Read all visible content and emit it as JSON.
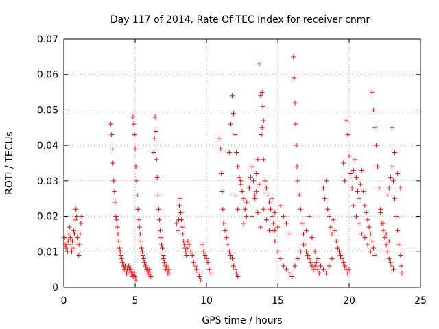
{
  "chart_data": {
    "type": "scatter",
    "title": "Day 117 of 2014, Rate Of TEC Index for receiver cnmr",
    "xlabel": "GPS time / hours",
    "ylabel": "ROTI / TECUs",
    "xlim": [
      0,
      25
    ],
    "ylim": [
      0,
      0.07
    ],
    "xticks": [
      0,
      5,
      10,
      15,
      20,
      25
    ],
    "xtick_labels": [
      "0",
      "5",
      "10",
      "15",
      "20",
      "25"
    ],
    "yticks": [
      0,
      0.01,
      0.02,
      0.03,
      0.04,
      0.05,
      0.06,
      0.07
    ],
    "ytick_labels": [
      "0",
      "0.01",
      "0.02",
      "0.03",
      "0.04",
      "0.05",
      "0.06",
      "0.07"
    ],
    "grid": true,
    "marker": "plus",
    "color": "#ff0000",
    "series": [
      {
        "x": [
          0.05,
          0.1,
          0.15,
          0.2,
          0.25,
          0.3,
          0.35,
          0.4,
          0.45,
          0.5,
          0.55,
          0.6,
          0.65,
          0.7,
          0.75,
          0.8,
          0.85,
          0.9,
          0.95,
          1.0,
          1.05,
          1.1,
          1.15,
          1.2,
          1.25,
          3.3,
          3.35,
          3.4,
          3.45,
          3.5,
          3.55,
          3.6,
          3.65,
          3.7,
          3.75,
          3.8,
          3.85,
          3.9,
          3.95,
          4.0,
          4.05,
          4.1,
          4.15,
          4.2,
          4.25,
          4.3,
          4.35,
          4.4,
          4.45,
          4.5,
          4.55,
          4.6,
          4.65,
          4.7,
          4.75,
          4.8,
          4.85,
          4.9,
          4.95,
          5.0,
          5.05,
          4.85,
          4.9,
          4.95,
          5.0,
          5.05,
          5.1,
          5.15,
          5.2,
          5.25,
          5.3,
          5.35,
          5.4,
          5.45,
          5.5,
          5.55,
          5.6,
          5.65,
          5.7,
          5.75,
          5.8,
          5.85,
          5.9,
          5.95,
          6.0,
          6.05,
          6.1,
          6.3,
          6.35,
          6.4,
          6.45,
          6.5,
          6.55,
          6.6,
          6.65,
          6.7,
          6.75,
          6.8,
          6.85,
          6.9,
          6.95,
          7.0,
          7.05,
          7.1,
          7.15,
          7.2,
          7.25,
          7.3,
          7.35,
          7.4,
          7.9,
          8.0,
          8.05,
          8.1,
          8.15,
          8.2,
          8.25,
          8.3,
          8.35,
          8.4,
          8.45,
          8.5,
          8.55,
          8.6,
          8.65,
          8.7,
          8.8,
          8.9,
          9.0,
          9.1,
          9.2,
          9.3,
          9.4,
          9.5,
          9.6,
          9.7,
          9.8,
          9.9,
          10.0,
          10.1,
          10.2,
          10.3,
          10.9,
          11.0,
          11.05,
          11.1,
          11.15,
          11.2,
          11.3,
          11.4,
          11.5,
          11.6,
          11.7,
          11.8,
          11.9,
          12.0,
          12.1,
          12.2,
          11.6,
          11.7,
          11.8,
          11.9,
          12.0,
          12.1,
          12.2,
          12.3,
          12.4,
          12.5,
          12.6,
          12.7,
          12.8,
          12.9,
          13.0,
          13.1,
          13.2,
          13.3,
          13.4,
          13.5,
          13.6,
          13.7,
          13.8,
          13.9,
          14.0,
          14.1,
          14.2,
          14.3,
          14.4,
          14.5,
          14.6,
          14.7,
          14.8,
          12.0,
          12.2,
          12.4,
          12.6,
          12.8,
          13.0,
          13.2,
          13.4,
          13.5,
          13.6,
          13.7,
          13.8,
          14.0,
          14.2,
          14.4,
          14.6,
          14.8,
          15.0,
          15.2,
          15.4,
          15.6,
          15.8,
          13.9,
          13.95,
          14.0,
          13.85,
          14.6,
          14.8,
          15.0,
          15.2,
          15.4,
          15.6,
          15.8,
          16.0,
          16.2,
          16.4,
          16.6,
          16.8,
          17.0,
          17.2,
          17.4,
          17.6,
          17.8,
          18.0,
          18.2,
          18.4,
          18.6,
          18.8,
          16.1,
          16.15,
          16.2,
          16.25,
          16.3,
          16.35,
          16.4,
          16.5,
          16.6,
          16.7,
          16.8,
          16.9,
          17.0,
          17.1,
          17.2,
          17.3,
          17.4,
          17.5,
          17.6,
          17.7,
          17.8,
          17.9,
          18.0,
          18.2,
          18.3,
          18.4,
          18.5,
          18.6,
          18.7,
          18.8,
          18.9,
          19.0,
          19.1,
          19.2,
          19.3,
          19.4,
          19.5,
          19.6,
          19.7,
          19.8,
          19.9,
          20.0,
          19.6,
          19.7,
          19.8,
          19.9,
          20.0,
          20.1,
          20.2,
          20.3,
          20.4,
          20.5,
          20.6,
          20.7,
          20.8,
          20.9,
          21.0,
          21.1,
          21.2,
          21.3,
          21.4,
          21.5,
          21.6,
          21.7,
          21.8,
          20.3,
          20.5,
          20.7,
          20.9,
          21.1,
          21.3,
          21.5,
          21.6,
          21.7,
          21.8,
          21.9,
          22.0,
          22.1,
          22.2,
          22.3,
          22.4,
          22.5,
          22.6,
          22.7,
          22.8,
          22.9,
          23.0,
          23.1,
          22.7,
          22.8,
          22.9,
          23.0,
          23.1,
          23.2,
          23.3,
          23.4,
          23.5,
          23.6,
          23.65,
          23.7,
          23.0,
          23.2,
          23.4,
          23.6,
          22.2,
          22.4,
          22.6,
          22.8
        ],
        "y": [
          0.014,
          0.012,
          0.011,
          0.012,
          0.01,
          0.013,
          0.015,
          0.017,
          0.014,
          0.012,
          0.01,
          0.013,
          0.011,
          0.016,
          0.015,
          0.019,
          0.022,
          0.02,
          0.014,
          0.012,
          0.009,
          0.012,
          0.015,
          0.018,
          0.02,
          0.046,
          0.043,
          0.039,
          0.035,
          0.03,
          0.027,
          0.024,
          0.02,
          0.019,
          0.017,
          0.015,
          0.013,
          0.011,
          0.01,
          0.009,
          0.008,
          0.007,
          0.006,
          0.006,
          0.005,
          0.006,
          0.005,
          0.004,
          0.005,
          0.004,
          0.006,
          0.005,
          0.004,
          0.005,
          0.004,
          0.003,
          0.004,
          0.003,
          0.004,
          0.003,
          0.002,
          0.048,
          0.046,
          0.043,
          0.039,
          0.034,
          0.03,
          0.026,
          0.022,
          0.019,
          0.017,
          0.015,
          0.013,
          0.011,
          0.01,
          0.009,
          0.008,
          0.007,
          0.006,
          0.006,
          0.005,
          0.004,
          0.005,
          0.004,
          0.005,
          0.004,
          0.003,
          0.038,
          0.042,
          0.048,
          0.044,
          0.036,
          0.031,
          0.026,
          0.022,
          0.019,
          0.016,
          0.014,
          0.012,
          0.011,
          0.009,
          0.008,
          0.007,
          0.006,
          0.005,
          0.006,
          0.005,
          0.004,
          0.005,
          0.004,
          0.018,
          0.016,
          0.019,
          0.023,
          0.025,
          0.021,
          0.019,
          0.017,
          0.015,
          0.013,
          0.012,
          0.011,
          0.01,
          0.009,
          0.011,
          0.013,
          0.012,
          0.01,
          0.009,
          0.007,
          0.006,
          0.005,
          0.004,
          0.003,
          0.002,
          0.012,
          0.01,
          0.009,
          0.008,
          0.007,
          0.005,
          0.004,
          0.042,
          0.039,
          0.032,
          0.027,
          0.022,
          0.018,
          0.016,
          0.014,
          0.012,
          0.01,
          0.009,
          0.008,
          0.006,
          0.005,
          0.004,
          0.003,
          0.038,
          0.046,
          0.054,
          0.049,
          0.043,
          0.038,
          0.034,
          0.031,
          0.029,
          0.027,
          0.025,
          0.022,
          0.02,
          0.024,
          0.028,
          0.031,
          0.034,
          0.03,
          0.026,
          0.032,
          0.036,
          0.063,
          0.054,
          0.045,
          0.036,
          0.03,
          0.028,
          0.026,
          0.024,
          0.022,
          0.02,
          0.018,
          0.016,
          0.026,
          0.022,
          0.03,
          0.018,
          0.024,
          0.028,
          0.02,
          0.025,
          0.027,
          0.021,
          0.029,
          0.017,
          0.022,
          0.019,
          0.016,
          0.025,
          0.021,
          0.017,
          0.023,
          0.02,
          0.018,
          0.015,
          0.055,
          0.051,
          0.047,
          0.043,
          0.016,
          0.013,
          0.01,
          0.008,
          0.006,
          0.005,
          0.004,
          0.003,
          0.006,
          0.008,
          0.01,
          0.012,
          0.016,
          0.02,
          0.014,
          0.01,
          0.008,
          0.006,
          0.005,
          0.004,
          0.006,
          0.008,
          0.065,
          0.059,
          0.052,
          0.046,
          0.04,
          0.034,
          0.03,
          0.026,
          0.022,
          0.018,
          0.015,
          0.012,
          0.01,
          0.009,
          0.008,
          0.007,
          0.006,
          0.005,
          0.006,
          0.007,
          0.005,
          0.004,
          0.006,
          0.028,
          0.025,
          0.03,
          0.022,
          0.02,
          0.017,
          0.015,
          0.019,
          0.016,
          0.013,
          0.011,
          0.01,
          0.009,
          0.008,
          0.007,
          0.006,
          0.005,
          0.004,
          0.005,
          0.035,
          0.03,
          0.047,
          0.043,
          0.037,
          0.032,
          0.028,
          0.033,
          0.036,
          0.031,
          0.027,
          0.025,
          0.029,
          0.033,
          0.027,
          0.023,
          0.021,
          0.019,
          0.017,
          0.015,
          0.013,
          0.011,
          0.009,
          0.023,
          0.02,
          0.018,
          0.015,
          0.014,
          0.012,
          0.01,
          0.055,
          0.05,
          0.045,
          0.04,
          0.034,
          0.028,
          0.022,
          0.018,
          0.016,
          0.014,
          0.012,
          0.01,
          0.008,
          0.007,
          0.006,
          0.005,
          0.026,
          0.028,
          0.031,
          0.034,
          0.03,
          0.025,
          0.02,
          0.016,
          0.012,
          0.009,
          0.006,
          0.004,
          0.045,
          0.038,
          0.032,
          0.028,
          0.021,
          0.018,
          0.015,
          0.013
        ]
      }
    ]
  }
}
